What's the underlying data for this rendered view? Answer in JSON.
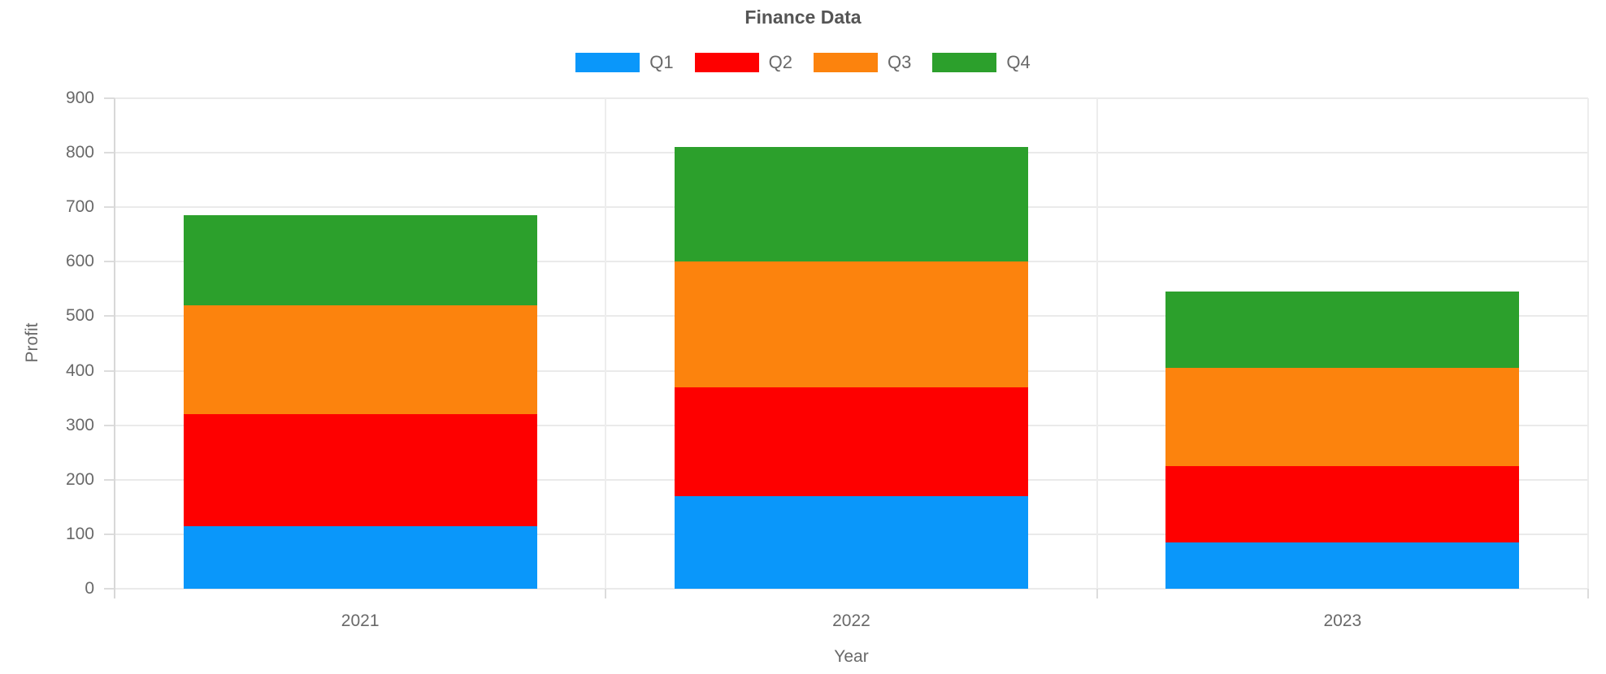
{
  "chart_data": {
    "type": "bar",
    "stacked": true,
    "title": "Finance Data",
    "xlabel": "Year",
    "ylabel": "Profit",
    "categories": [
      "2021",
      "2022",
      "2023"
    ],
    "series": [
      {
        "name": "Q1",
        "color": "#0A97FA",
        "values": [
          115,
          170,
          85
        ]
      },
      {
        "name": "Q2",
        "color": "#FE0000",
        "values": [
          205,
          200,
          140
        ]
      },
      {
        "name": "Q3",
        "color": "#FC830D",
        "values": [
          200,
          230,
          180
        ]
      },
      {
        "name": "Q4",
        "color": "#2CA02C",
        "values": [
          165,
          210,
          140
        ]
      }
    ],
    "stack_totals": [
      685,
      810,
      545
    ],
    "ylim": [
      0,
      900
    ],
    "ytick_step": 100,
    "ytick_labels": [
      "0",
      "100",
      "200",
      "300",
      "400",
      "500",
      "600",
      "700",
      "800",
      "900"
    ],
    "grid": true,
    "legend_position": "top-center"
  },
  "ui_colors": {
    "background": "#FFFFFF",
    "grid_line": "#EAEAEA",
    "axis_line": "#D8D8D8",
    "tick_mark": "#DCDCDC",
    "tick_text": "#696969",
    "title_text": "#555555"
  }
}
